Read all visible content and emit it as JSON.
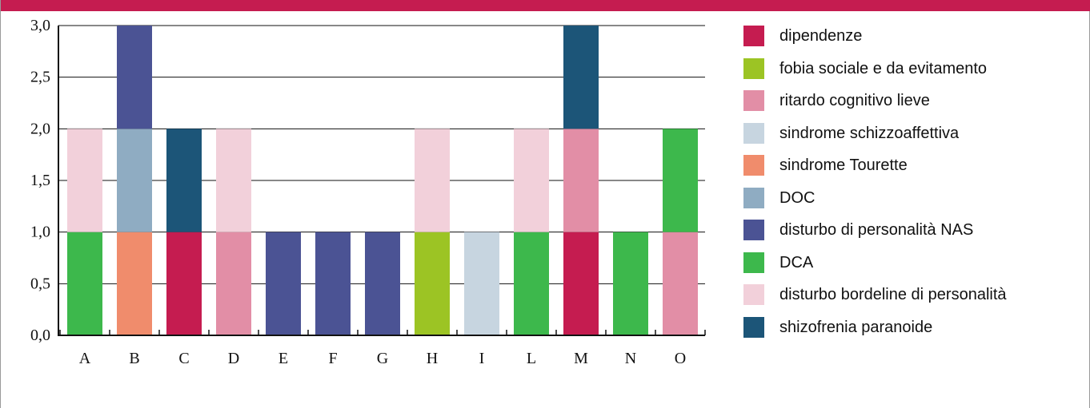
{
  "chart_data": {
    "type": "bar",
    "stacked": true,
    "categories": [
      "A",
      "B",
      "C",
      "D",
      "E",
      "F",
      "G",
      "H",
      "I",
      "L",
      "M",
      "N",
      "O"
    ],
    "ylim": [
      0,
      3
    ],
    "y_ticks": [
      "0,0",
      "0,5",
      "1,0",
      "1,5",
      "2,0",
      "2,5",
      "3,0"
    ],
    "grid": true,
    "legend_position": "right",
    "series": [
      {
        "name": "dipendenze",
        "color": "#c51c50",
        "values": [
          0,
          0,
          1,
          0,
          0,
          0,
          0,
          0,
          0,
          0,
          1,
          0,
          0
        ]
      },
      {
        "name": "fobia sociale e da evitamento",
        "color": "#9cc424",
        "values": [
          0,
          0,
          0,
          0,
          0,
          0,
          0,
          1,
          0,
          0,
          0,
          0,
          0
        ]
      },
      {
        "name": "ritardo cognitivo lieve",
        "color": "#e28ea6",
        "values": [
          0,
          0,
          0,
          1,
          0,
          0,
          0,
          0,
          0,
          0,
          1,
          0,
          1
        ]
      },
      {
        "name": "sindrome schizzoaffettiva",
        "color": "#c7d5e0",
        "values": [
          0,
          0,
          0,
          0,
          0,
          0,
          0,
          0,
          1,
          0,
          0,
          0,
          0
        ]
      },
      {
        "name": "sindrome Tourette",
        "color": "#f08c6c",
        "values": [
          0,
          1,
          0,
          0,
          0,
          0,
          0,
          0,
          0,
          0,
          0,
          0,
          0
        ]
      },
      {
        "name": "DOC",
        "color": "#8facc2",
        "values": [
          0,
          1,
          0,
          0,
          0,
          0,
          0,
          0,
          0,
          0,
          0,
          0,
          0
        ]
      },
      {
        "name": "disturbo di personalità NAS",
        "color": "#4b5394",
        "values": [
          0,
          1,
          0,
          0,
          1,
          1,
          1,
          0,
          0,
          0,
          0,
          0,
          0
        ]
      },
      {
        "name": "DCA",
        "color": "#3db84c",
        "values": [
          1,
          0,
          0,
          0,
          0,
          0,
          0,
          0,
          0,
          1,
          0,
          1,
          1
        ]
      },
      {
        "name": "disturbo bordeline di personalità",
        "color": "#f2d0da",
        "values": [
          1,
          0,
          0,
          1,
          0,
          0,
          0,
          1,
          0,
          1,
          0,
          0,
          0
        ]
      },
      {
        "name": "shizofrenia paranoide",
        "color": "#1c5578",
        "values": [
          0,
          0,
          1,
          0,
          0,
          0,
          0,
          0,
          0,
          0,
          1,
          0,
          0
        ]
      }
    ]
  }
}
